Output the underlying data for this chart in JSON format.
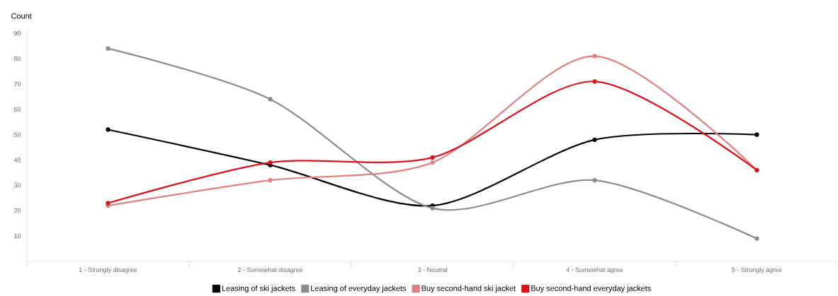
{
  "chart_data": {
    "type": "line",
    "ylabel": "Count",
    "categories": [
      "1 - Strongly disagree",
      "2 - Somewhat disagree",
      "3 - Neutral",
      "4 - Somewhat agree",
      "5 - Strongly agree"
    ],
    "series": [
      {
        "name": "Leasing of ski jackets",
        "color": "#000000",
        "values": [
          52,
          38,
          22,
          48,
          50
        ]
      },
      {
        "name": "Leasing of everyday jackets",
        "color": "#8c8c8c",
        "values": [
          84,
          64,
          21,
          32,
          9
        ]
      },
      {
        "name": "Buy second-hand ski jacket",
        "color": "#e08080",
        "values": [
          22,
          32,
          39,
          81,
          36
        ]
      },
      {
        "name": "Buy second-hand everyday jackets",
        "color": "#d9121b",
        "values": [
          23,
          39,
          41,
          71,
          36
        ]
      }
    ],
    "ylim": [
      0,
      92
    ],
    "yticks": [
      10,
      20,
      30,
      40,
      50,
      60,
      70,
      80,
      90
    ],
    "grid": false,
    "legend": "bottom",
    "marker": "circle",
    "line_style": "solid"
  }
}
